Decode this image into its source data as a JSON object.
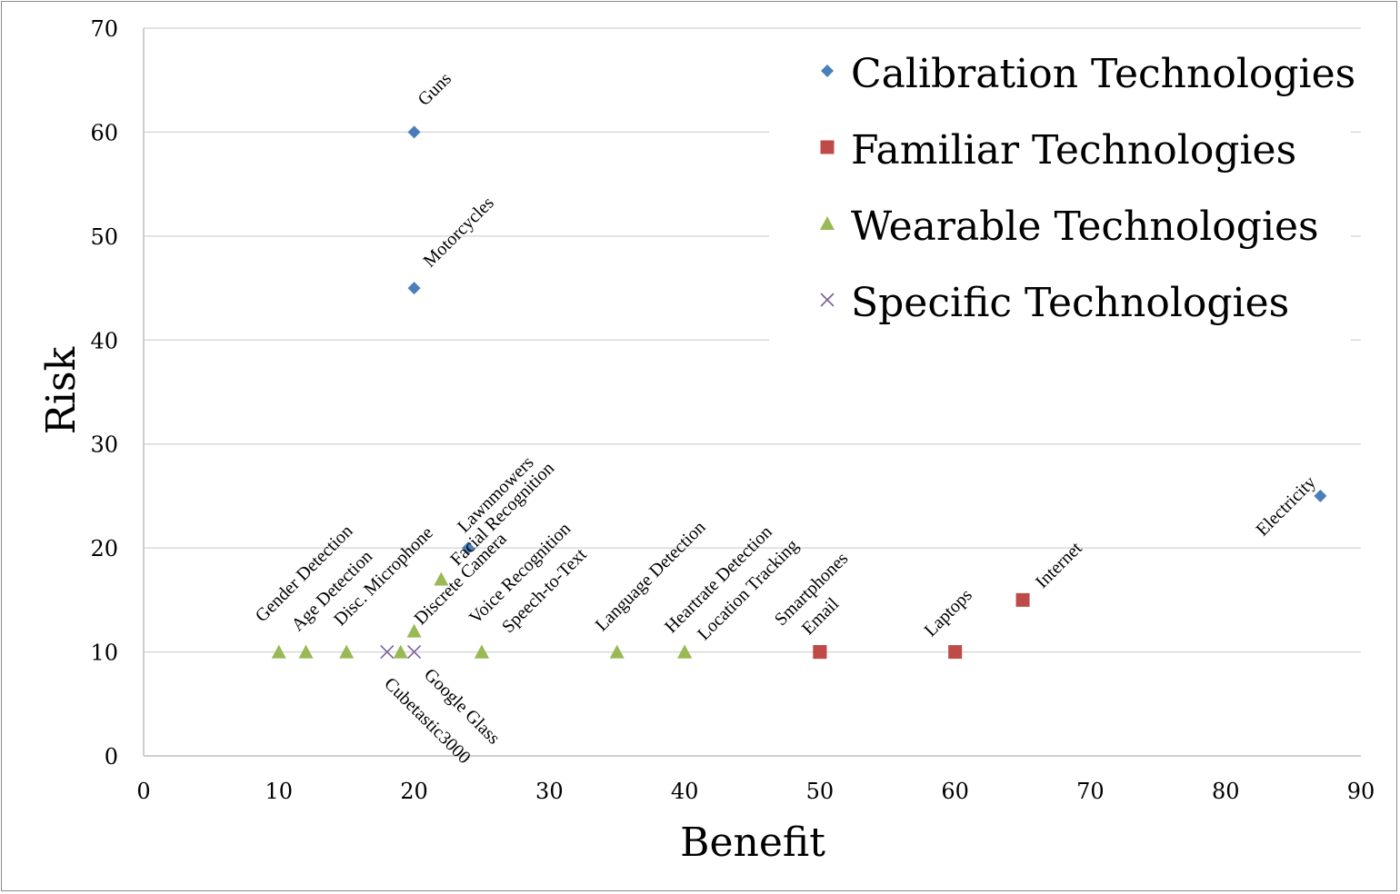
{
  "chart_data": {
    "type": "scatter",
    "xlabel": "Benefit",
    "ylabel": "Risk",
    "xlim": [
      0,
      90
    ],
    "ylim": [
      0,
      70
    ],
    "xticks": [
      0,
      10,
      20,
      30,
      40,
      50,
      60,
      70,
      80,
      90
    ],
    "yticks": [
      0,
      10,
      20,
      30,
      40,
      50,
      60,
      70
    ],
    "grid": "horizontal",
    "legend_position": "top-right",
    "series": [
      {
        "name": "Calibration Technologies",
        "marker": "diamond",
        "color": "#4a7ebb",
        "points": [
          {
            "x": 20,
            "y": 60,
            "label": "Guns"
          },
          {
            "x": 20,
            "y": 45,
            "label": "Motorcycles"
          },
          {
            "x": 24,
            "y": 20,
            "label": "Lawnmowers"
          },
          {
            "x": 87,
            "y": 25,
            "label": "Electricity"
          }
        ]
      },
      {
        "name": "Familiar Technologies",
        "marker": "square",
        "color": "#be4b48",
        "points": [
          {
            "x": 50,
            "y": 10,
            "label": "Smartphones"
          },
          {
            "x": 50,
            "y": 10,
            "label": "Email"
          },
          {
            "x": 60,
            "y": 10,
            "label": "Laptops"
          },
          {
            "x": 65,
            "y": 15,
            "label": "Internet"
          }
        ]
      },
      {
        "name": "Wearable Technologies",
        "marker": "triangle",
        "color": "#98b954",
        "points": [
          {
            "x": 10,
            "y": 10,
            "label": "Gender Detection"
          },
          {
            "x": 12,
            "y": 10,
            "label": "Age Detection"
          },
          {
            "x": 15,
            "y": 10,
            "label": "Disc. Microphone"
          },
          {
            "x": 19,
            "y": 10,
            "label": ""
          },
          {
            "x": 20,
            "y": 12,
            "label": "Discrete Camera"
          },
          {
            "x": 22,
            "y": 17,
            "label": "Facial Recognition"
          },
          {
            "x": 25,
            "y": 10,
            "label": "Voice Recognition"
          },
          {
            "x": 25,
            "y": 10,
            "label": "Speech-to-Text"
          },
          {
            "x": 35,
            "y": 10,
            "label": "Language Detection"
          },
          {
            "x": 40,
            "y": 10,
            "label": "Heartrate Detection"
          },
          {
            "x": 40,
            "y": 10,
            "label": "Location Tracking"
          }
        ]
      },
      {
        "name": "Specific Technologies",
        "marker": "x",
        "color": "#7d60a0",
        "points": [
          {
            "x": 18,
            "y": 10,
            "label": "Cubetastic3000"
          },
          {
            "x": 20,
            "y": 10,
            "label": "Google Glass"
          }
        ]
      }
    ]
  }
}
